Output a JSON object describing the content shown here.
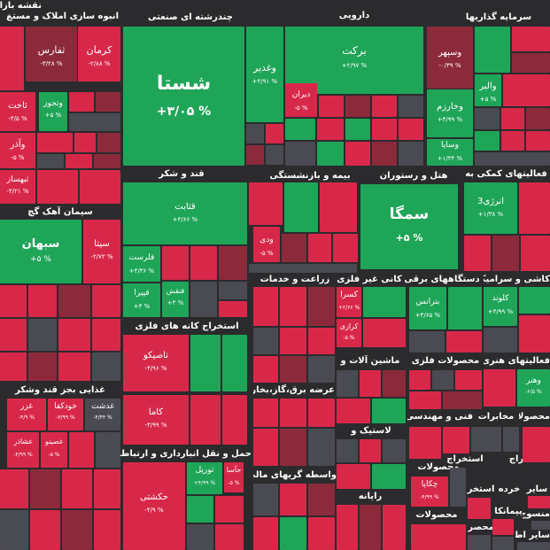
{
  "sectors": [
    {
      "id": "naghsheh",
      "label": "نقشه بازا"
    },
    {
      "id": "anboh",
      "label": "انبوه سازی املاک و مستغ"
    },
    {
      "id": "chand",
      "label": "چندرشته ای صنعتی"
    },
    {
      "id": "daroo",
      "label": "دارویی"
    },
    {
      "id": "sarmaye",
      "label": "سرمایه گذاریها"
    },
    {
      "id": "ghand",
      "label": "قند و شکر"
    },
    {
      "id": "bime",
      "label": "بیمه و بازنشستگی"
    },
    {
      "id": "hotel",
      "label": "هتل و رستوران"
    },
    {
      "id": "faaliyat",
      "label": "فعالیتهای کمکی به"
    },
    {
      "id": "siman",
      "label": "سیمان آهک گچ"
    },
    {
      "id": "zeraat",
      "label": "زراعت و خدمات"
    },
    {
      "id": "kani",
      "label": "کانی غیر فلزی"
    },
    {
      "id": "dastgah",
      "label": "دستگاههای برقی"
    },
    {
      "id": "kashi",
      "label": "کاشی و سرامیک"
    },
    {
      "id": "estekhraj",
      "label": "استخراج کانه های فلزی"
    },
    {
      "id": "mashin",
      "label": "ماشین آلات و"
    },
    {
      "id": "mahsulat_felezi",
      "label": "محصولات فلزی"
    },
    {
      "id": "faaliyat_honari",
      "label": "فعالیتهای هنری"
    },
    {
      "id": "ghazaei",
      "label": "غذایی بجز قند وشکر"
    },
    {
      "id": "arze",
      "label": "عرضه برق،گاز،بخار و"
    },
    {
      "id": "fani",
      "label": "فنی و مهندسی"
    },
    {
      "id": "mokhaberat",
      "label": "مخابرات"
    },
    {
      "id": "mahsoula",
      "label": "محصولا"
    },
    {
      "id": "haml",
      "label": "حمل و نقل انبارداری و ارتباطات"
    },
    {
      "id": "lastik",
      "label": "لاستیک و"
    },
    {
      "id": "estekhraj2",
      "label": "استخراج"
    },
    {
      "id": "estekhraj3",
      "label": "استخراج"
    },
    {
      "id": "vasete",
      "label": "واسطه گریهای مالی"
    },
    {
      "id": "mahsulat2",
      "label": "محصولات"
    },
    {
      "id": "sayer",
      "label": "سایر"
    },
    {
      "id": "khorde",
      "label": "خرده"
    },
    {
      "id": "estekhr4",
      "label": "استخر"
    },
    {
      "id": "rayane",
      "label": "رایانه"
    },
    {
      "id": "mahsulat3",
      "label": "محصولات"
    },
    {
      "id": "mensoj",
      "label": "منسوج"
    },
    {
      "id": "peymankar",
      "label": "پیمانکا"
    },
    {
      "id": "mahsur",
      "label": "محصر"
    },
    {
      "id": "sayer_ettela",
      "label": "سایر اطلاعا"
    }
  ],
  "tiles": [
    {
      "sym": "کرمان",
      "pct": "-۲/۸۸ %"
    },
    {
      "sym": "ثفارس",
      "pct": "-۳/۲۸ %"
    },
    {
      "sym": "وغدیر",
      "pct": "+۴/۹۱ %"
    },
    {
      "sym": "شستا",
      "pct": "+۳/۰۵ %"
    },
    {
      "sym": "برکت",
      "pct": "+۲/۹۷ %"
    },
    {
      "sym": "وسپهر",
      "pct": "-۰/۳۹ %"
    },
    {
      "sym": "وخارزم",
      "pct": "+۴/۹۹ %"
    },
    {
      "sym": "والبر",
      "pct": "+۵ %"
    },
    {
      "sym": "ثاخت",
      "pct": "-۳/۵ %"
    },
    {
      "sym": "وتجوز",
      "pct": "+۵ %"
    },
    {
      "sym": "دیران",
      "pct": "-۵ %"
    },
    {
      "sym": "وآذر",
      "pct": "-۵ %"
    },
    {
      "sym": "وساپا",
      "pct": "+۱/۳۴ %"
    },
    {
      "sym": "ثبهساز",
      "pct": "-۴/۲۱ %"
    },
    {
      "sym": "قثابت",
      "pct": "+۳/۶۶ %"
    },
    {
      "sym": "سمگا",
      "pct": "+۵ %"
    },
    {
      "sym": "انرژی3",
      "pct": "+۱/۳۸ %"
    },
    {
      "sym": "سبهان",
      "pct": "+۵ %"
    },
    {
      "sym": "سیتا",
      "pct": "-۲/۷۲ %"
    },
    {
      "sym": "ودی",
      "pct": "-۵ %"
    },
    {
      "sym": "قلرست",
      "pct": "+۴/۳۶ %"
    },
    {
      "sym": "قپیرا",
      "pct": "+۳ %"
    },
    {
      "sym": "قنقش",
      "pct": "+۳ %"
    },
    {
      "sym": "کسرا",
      "pct": "+۲/۶۶ %"
    },
    {
      "sym": "بترانس",
      "pct": "+۴/۶۵ %"
    },
    {
      "sym": "کلوند",
      "pct": "+۴/۹۹ %"
    },
    {
      "sym": "کرازی",
      "pct": "-۵ %"
    },
    {
      "sym": "تاصیکو",
      "pct": "-۴/۹۶ %"
    },
    {
      "sym": "وهنر",
      "pct": "-۲/۵ %"
    },
    {
      "sym": "غدشت",
      "pct": "-۴/۴۴ %"
    },
    {
      "sym": "خودکفا",
      "pct": "-۳/۹۹ %"
    },
    {
      "sym": "غزر",
      "pct": "-۴/۹ %"
    },
    {
      "sym": "کاما",
      "pct": "-۴/۹۹ %"
    },
    {
      "sym": "غشاذر",
      "pct": "-۴/۹۹ %"
    },
    {
      "sym": "غصینو",
      "pct": "-۵ %"
    },
    {
      "sym": "حکشتی",
      "pct": "-۴/۹ %"
    },
    {
      "sym": "تورپل",
      "pct": "+۴/۹۹ %"
    },
    {
      "sym": "حآسا",
      "pct": "-۵ %"
    },
    {
      "sym": "چکاپا",
      "pct": "-۴/۹۹ %"
    }
  ],
  "colors": {
    "up": "#1fa558",
    "down": "#d8284a",
    "down_dark": "#8c2a3c",
    "neutral": "#4a4a52",
    "bg": "#2b2b2d"
  }
}
